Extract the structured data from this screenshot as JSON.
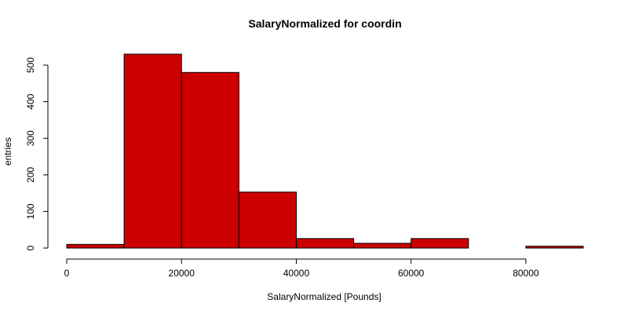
{
  "chart_data": {
    "type": "bar",
    "title": "SalaryNormalized for coordin",
    "xlabel": "SalaryNormalized [Pounds]",
    "ylabel": "entries",
    "bar_color": "#cc0000",
    "bins": [
      {
        "from": 0,
        "to": 10000,
        "count": 10
      },
      {
        "from": 10000,
        "to": 20000,
        "count": 530
      },
      {
        "from": 20000,
        "to": 30000,
        "count": 480
      },
      {
        "from": 30000,
        "to": 40000,
        "count": 153
      },
      {
        "from": 40000,
        "to": 50000,
        "count": 26
      },
      {
        "from": 50000,
        "to": 60000,
        "count": 13
      },
      {
        "from": 60000,
        "to": 70000,
        "count": 26
      },
      {
        "from": 70000,
        "to": 80000,
        "count": 0
      },
      {
        "from": 80000,
        "to": 90000,
        "count": 5
      }
    ],
    "xlim": [
      0,
      90000
    ],
    "ylim": [
      0,
      530
    ],
    "x_ticks": [
      0,
      20000,
      40000,
      60000,
      80000
    ],
    "x_tick_labels": [
      "0",
      "20000",
      "40000",
      "60000",
      "80000"
    ],
    "y_ticks": [
      0,
      100,
      200,
      300,
      400,
      500
    ],
    "y_tick_labels": [
      "0",
      "100",
      "200",
      "300",
      "400",
      "500"
    ],
    "grid": false,
    "legend": "none"
  }
}
